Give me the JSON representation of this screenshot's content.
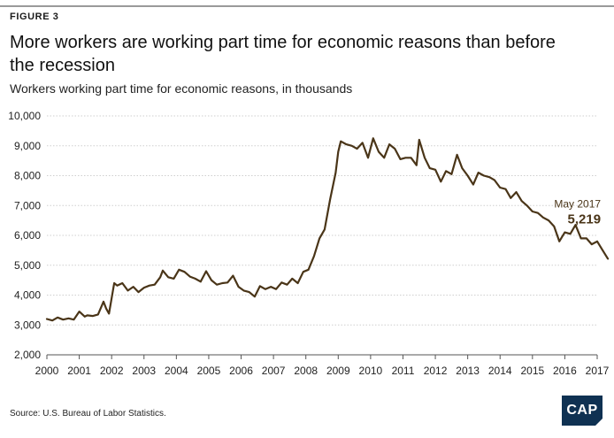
{
  "figure_label": "FIGURE 3",
  "title": "More workers are working part time for economic reasons than before the recession",
  "subtitle": "Workers working part time for economic reasons, in thousands",
  "source": "Source: U.S. Bureau of Labor Statistics.",
  "logo_text": "CAP",
  "colors": {
    "line": "#4a3518",
    "grid": "#cfcfcf",
    "axis": "#555555",
    "logo": "#0f3152"
  },
  "chart_data": {
    "type": "line",
    "xlabel": "",
    "ylabel": "",
    "xlim": [
      2000,
      2017
    ],
    "ylim": [
      2000,
      10000
    ],
    "y_ticks": [
      2000,
      3000,
      4000,
      5000,
      6000,
      7000,
      8000,
      9000,
      10000
    ],
    "y_tick_labels": [
      "2,000",
      "3,000",
      "4,000",
      "5,000",
      "6,000",
      "7,000",
      "8,000",
      "9,000",
      "10,000"
    ],
    "x_ticks": [
      2000,
      2001,
      2002,
      2003,
      2004,
      2005,
      2006,
      2007,
      2008,
      2009,
      2010,
      2011,
      2012,
      2013,
      2014,
      2015,
      2016,
      2017
    ],
    "grid": "horizontal",
    "annotation": {
      "label": "May 2017",
      "value_label": "5,219",
      "x": 2017.33,
      "y": 5219
    },
    "series": [
      {
        "x": [
          2000.0,
          2000.17,
          2000.33,
          2000.5,
          2000.67,
          2000.83,
          2001.0,
          2001.17,
          2001.25,
          2001.42,
          2001.58,
          2001.75,
          2001.83,
          2001.92,
          2002.08,
          2002.17,
          2002.33,
          2002.5,
          2002.67,
          2002.83,
          2003.0,
          2003.17,
          2003.33,
          2003.5,
          2003.58,
          2003.75,
          2003.92,
          2004.08,
          2004.25,
          2004.42,
          2004.58,
          2004.75,
          2004.92,
          2005.08,
          2005.25,
          2005.42,
          2005.58,
          2005.75,
          2005.92,
          2006.08,
          2006.25,
          2006.42,
          2006.58,
          2006.75,
          2006.92,
          2007.08,
          2007.25,
          2007.42,
          2007.58,
          2007.75,
          2007.92,
          2008.08,
          2008.25,
          2008.42,
          2008.58,
          2008.75,
          2008.92,
          2009.0,
          2009.08,
          2009.25,
          2009.42,
          2009.58,
          2009.75,
          2009.92,
          2010.08,
          2010.25,
          2010.42,
          2010.58,
          2010.75,
          2010.92,
          2011.08,
          2011.25,
          2011.42,
          2011.5,
          2011.67,
          2011.83,
          2012.0,
          2012.17,
          2012.33,
          2012.5,
          2012.67,
          2012.83,
          2013.0,
          2013.17,
          2013.33,
          2013.5,
          2013.67,
          2013.83,
          2014.0,
          2014.17,
          2014.33,
          2014.5,
          2014.67,
          2014.83,
          2015.0,
          2015.17,
          2015.33,
          2015.5,
          2015.67,
          2015.83,
          2016.0,
          2016.17,
          2016.33,
          2016.5,
          2016.67,
          2016.83,
          2017.0,
          2017.17,
          2017.33
        ],
        "y": [
          3200,
          3150,
          3250,
          3180,
          3220,
          3180,
          3450,
          3280,
          3320,
          3300,
          3350,
          3780,
          3550,
          3380,
          4400,
          4320,
          4400,
          4150,
          4280,
          4100,
          4250,
          4320,
          4350,
          4600,
          4820,
          4600,
          4550,
          4850,
          4780,
          4620,
          4550,
          4450,
          4800,
          4500,
          4350,
          4400,
          4420,
          4650,
          4280,
          4150,
          4100,
          3950,
          4300,
          4200,
          4280,
          4200,
          4420,
          4350,
          4550,
          4400,
          4780,
          4850,
          5300,
          5900,
          6200,
          7200,
          8100,
          8800,
          9150,
          9050,
          9000,
          8900,
          9100,
          8600,
          9250,
          8800,
          8600,
          9050,
          8900,
          8550,
          8600,
          8600,
          8350,
          9200,
          8600,
          8250,
          8200,
          7800,
          8150,
          8050,
          8700,
          8250,
          8000,
          7700,
          8100,
          8000,
          7950,
          7850,
          7600,
          7550,
          7250,
          7450,
          7150,
          7000,
          6800,
          6750,
          6600,
          6500,
          6300,
          5800,
          6100,
          6050,
          6350,
          5900,
          5900,
          5700,
          5800,
          5500,
          5219
        ]
      }
    ]
  }
}
